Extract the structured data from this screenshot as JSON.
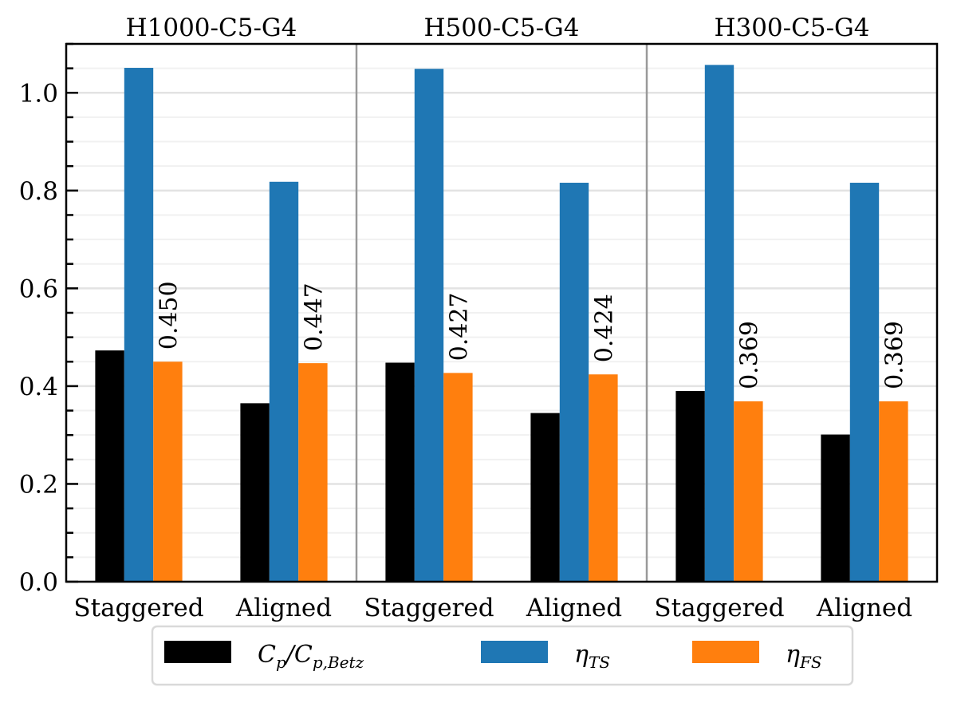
{
  "chart_data": {
    "type": "bar",
    "title": "",
    "xlabel": "",
    "ylabel": "",
    "ylim": [
      0.0,
      1.1
    ],
    "yticks": [
      0.0,
      0.2,
      0.4,
      0.6,
      0.8,
      1.0
    ],
    "ytick_labels": [
      "0.0",
      "0.2",
      "0.4",
      "0.6",
      "0.8",
      "1.0"
    ],
    "yminor_step": 0.05,
    "grid": true,
    "groups": [
      {
        "title": "H1000-C5-G4",
        "categories": [
          "Staggered",
          "Aligned"
        ]
      },
      {
        "title": "H500-C5-G4",
        "categories": [
          "Staggered",
          "Aligned"
        ]
      },
      {
        "title": "H300-C5-G4",
        "categories": [
          "Staggered",
          "Aligned"
        ]
      }
    ],
    "categories": [
      "Staggered",
      "Aligned",
      "Staggered",
      "Aligned",
      "Staggered",
      "Aligned"
    ],
    "series": [
      {
        "name": "Cp/Cp,Betz",
        "label_main": "C",
        "color": "#000000",
        "values": [
          0.473,
          0.365,
          0.448,
          0.345,
          0.39,
          0.301
        ]
      },
      {
        "name": "eta_TS",
        "color": "#1f77b4",
        "values": [
          1.051,
          0.818,
          1.049,
          0.816,
          1.057,
          0.816
        ]
      },
      {
        "name": "eta_FS",
        "color": "#ff7f0e",
        "values": [
          0.45,
          0.447,
          0.427,
          0.424,
          0.369,
          0.369
        ]
      }
    ],
    "annotations": [
      "0.450",
      "0.447",
      "0.427",
      "0.424",
      "0.369",
      "0.369"
    ],
    "annotation_series": "eta_FS",
    "legend": {
      "placement": "bottom-center-outside",
      "entries": [
        {
          "parts": [
            "C",
            "p",
            "/C",
            "p,Betz"
          ],
          "color": "#000000"
        },
        {
          "parts": [
            "η",
            "TS"
          ],
          "color": "#1f77b4"
        },
        {
          "parts": [
            "η",
            "FS"
          ],
          "color": "#ff7f0e"
        }
      ]
    }
  }
}
